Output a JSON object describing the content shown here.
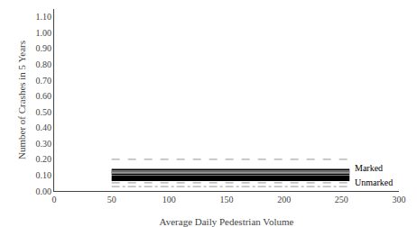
{
  "chart_data": {
    "type": "line",
    "title": "",
    "xlabel": "Average Daily Pedestrian Volume",
    "ylabel": "Number of Crashes in 5 Years",
    "xlim": [
      0,
      300
    ],
    "ylim": [
      0.0,
      1.15
    ],
    "xticks": [
      0,
      50,
      100,
      150,
      200,
      250,
      300
    ],
    "yticks": [
      {
        "value": 0.0,
        "label": "0.00"
      },
      {
        "value": 0.1,
        "label": "0.10"
      },
      {
        "value": 0.2,
        "label": "0.20"
      },
      {
        "value": 0.3,
        "label": "0.30"
      },
      {
        "value": 0.4,
        "label": "0.40"
      },
      {
        "value": 0.5,
        "label": "0.50"
      },
      {
        "value": 0.6,
        "label": "0.60"
      },
      {
        "value": 0.7,
        "label": "0.70"
      },
      {
        "value": 0.8,
        "label": "0.80"
      },
      {
        "value": 0.9,
        "label": "0.90"
      },
      {
        "value": 1.0,
        "label": "1.00"
      },
      {
        "value": 1.1,
        "label": "1.10"
      }
    ],
    "grid": false,
    "background_color": "#ffffff",
    "x": [
      50,
      257
    ],
    "series": [
      {
        "values": [
          0.2,
          0.2
        ],
        "color": "#aaaaaa",
        "line_style": "dashed"
      },
      {
        "values": [
          0.052,
          0.052
        ],
        "color": "#aaaaaa",
        "line_style": "dashed"
      },
      {
        "values": [
          0.115,
          0.115
        ],
        "color": "#aaaaaa",
        "line_style": "dashdot"
      },
      {
        "values": [
          0.028,
          0.028
        ],
        "color": "#aaaaaa",
        "line_style": "dashdot"
      },
      {
        "name": "Marked",
        "values": [
          0.12,
          0.12
        ],
        "color": "#000000",
        "line_style": "double"
      },
      {
        "name": "Unmarked",
        "values": [
          0.08,
          0.08
        ],
        "color": "#000000",
        "line_style": "solid"
      }
    ]
  }
}
